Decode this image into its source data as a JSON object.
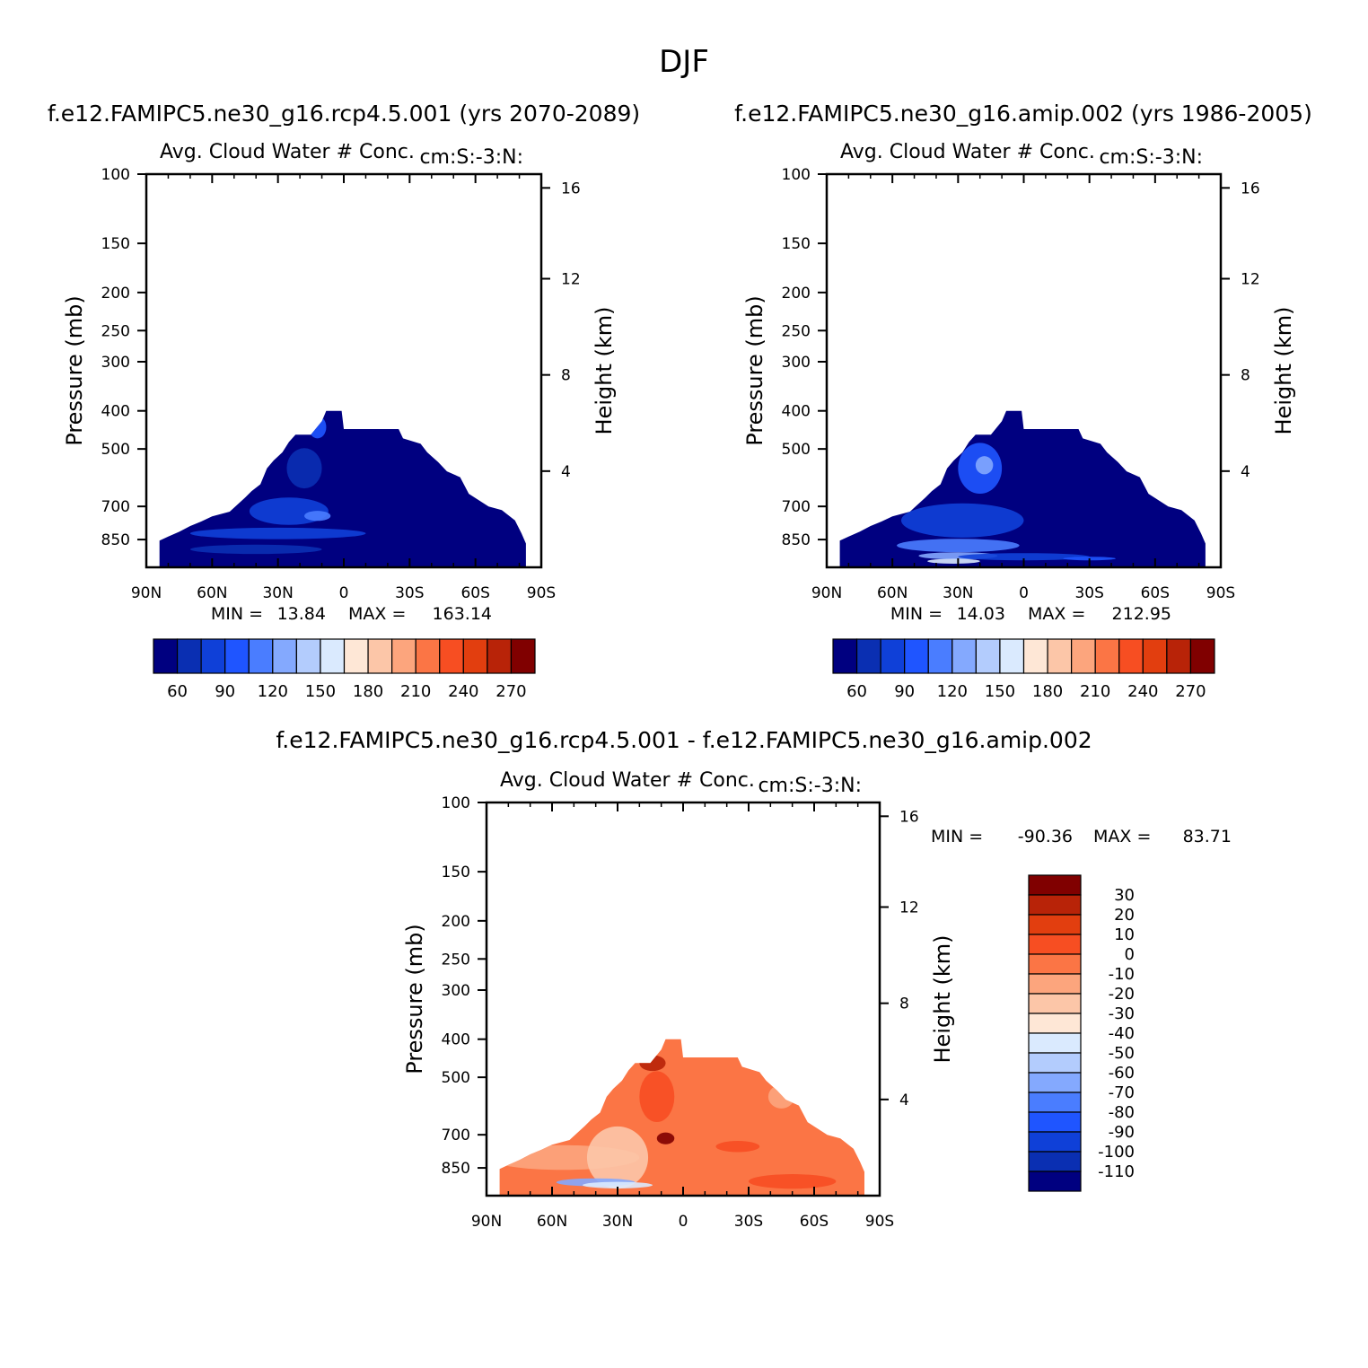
{
  "page": {
    "season_title": "DJF"
  },
  "colors": {
    "cbar_main": [
      "#000080",
      "#0a2fb2",
      "#0f40d8",
      "#1f55ff",
      "#4a7dff",
      "#84a9fe",
      "#b3ccfd",
      "#daeafe",
      "#fee7d6",
      "#fcc6a8",
      "#fca57d",
      "#fb7545",
      "#f74e22",
      "#e23e0f",
      "#b82308",
      "#800000"
    ],
    "cbar_diff": [
      "#000080",
      "#0a2fb2",
      "#0f40d8",
      "#1f55ff",
      "#4a7dff",
      "#84a9fe",
      "#b3ccfd",
      "#daeafe",
      "#fee7d6",
      "#fcc6a8",
      "#fca57d",
      "#fb7545",
      "#f74e22",
      "#e23e0f",
      "#b82308",
      "#800000"
    ]
  },
  "chart_data": [
    {
      "type": "heatmap",
      "name": "panel-rcp45",
      "run_title": "f.e12.FAMIPC5.ne30_g16.rcp4.5.001 (yrs 2070-2089)",
      "variable_label": "Avg. Cloud Water # Conc.",
      "units_label": "cm:S:-3:N:",
      "xlabel": "",
      "ylabel": "Pressure (mb)",
      "y2label": "Height (km)",
      "x_ticks": [
        "90N",
        "60N",
        "30N",
        "0",
        "30S",
        "60S",
        "90S"
      ],
      "x_range": [
        90,
        -90
      ],
      "y_ticks": [
        100,
        150,
        200,
        250,
        300,
        400,
        500,
        700,
        850
      ],
      "y_range": [
        100,
        1000
      ],
      "y2_ticks": [
        16,
        12,
        8,
        4
      ],
      "min_label": "MIN =",
      "min": "13.84",
      "max_label": "MAX =",
      "max": "163.14",
      "colorbar_labels": [
        "60",
        "90",
        "120",
        "150",
        "180",
        "210",
        "240",
        "270"
      ],
      "colorbar_levels": [
        45,
        60,
        75,
        90,
        105,
        120,
        135,
        150,
        165,
        180,
        195,
        210,
        225,
        240,
        255,
        270,
        285
      ],
      "field_summary": "Cloud water number concentration confined below ~400 mb; values mostly 30-45 (darkest blue), with 50-90 pockets near 30N-0 and low levels."
    },
    {
      "type": "heatmap",
      "name": "panel-amip",
      "run_title": "f.e12.FAMIPC5.ne30_g16.amip.002 (yrs 1986-2005)",
      "variable_label": "Avg. Cloud Water # Conc.",
      "units_label": "cm:S:-3:N:",
      "xlabel": "",
      "ylabel": "Pressure (mb)",
      "y2label": "Height (km)",
      "x_ticks": [
        "90N",
        "60N",
        "30N",
        "0",
        "30S",
        "60S",
        "90S"
      ],
      "x_range": [
        90,
        -90
      ],
      "y_ticks": [
        100,
        150,
        200,
        250,
        300,
        400,
        500,
        700,
        850
      ],
      "y_range": [
        100,
        1000
      ],
      "y2_ticks": [
        16,
        12,
        8,
        4
      ],
      "min_label": "MIN =",
      "min": "14.03",
      "max_label": "MAX =",
      "max": "212.95",
      "colorbar_labels": [
        "60",
        "90",
        "120",
        "150",
        "180",
        "210",
        "240",
        "270"
      ],
      "colorbar_levels": [
        45,
        60,
        75,
        90,
        105,
        120,
        135,
        150,
        165,
        180,
        195,
        210,
        225,
        240,
        255,
        270,
        285
      ],
      "field_summary": "Similar distribution, with higher values (up to ~150-180) near the surface around 30N-10N."
    },
    {
      "type": "heatmap",
      "name": "panel-diff",
      "run_title": "f.e12.FAMIPC5.ne30_g16.rcp4.5.001 - f.e12.FAMIPC5.ne30_g16.amip.002",
      "variable_label": "Avg. Cloud Water # Conc.",
      "units_label": "cm:S:-3:N:",
      "xlabel": "",
      "ylabel": "Pressure (mb)",
      "y2label": "Height (km)",
      "x_ticks": [
        "90N",
        "60N",
        "30N",
        "0",
        "30S",
        "60S",
        "90S"
      ],
      "x_range": [
        90,
        -90
      ],
      "y_ticks": [
        100,
        150,
        200,
        250,
        300,
        400,
        500,
        700,
        850
      ],
      "y_range": [
        100,
        1000
      ],
      "y2_ticks": [
        16,
        12,
        8,
        4
      ],
      "min_label": "MIN =",
      "min": "-90.36",
      "max_label": "MAX =",
      "max": "83.71",
      "colorbar_labels": [
        "30",
        "20",
        "10",
        "0",
        "-10",
        "-20",
        "-30",
        "-40",
        "-50",
        "-60",
        "-70",
        "-80",
        "-90",
        "-100",
        "-110"
      ],
      "colorbar_levels": [
        40,
        30,
        20,
        10,
        0,
        -10,
        -20,
        -30,
        -40,
        -50,
        -60,
        -70,
        -80,
        -90,
        -100,
        -110,
        -120
      ],
      "field_summary": "Difference mostly -10 to -20 (orange) with positive maxima (30+) near 10N at 700 mb and negative (light blue) near 30N-45N at the surface."
    }
  ]
}
